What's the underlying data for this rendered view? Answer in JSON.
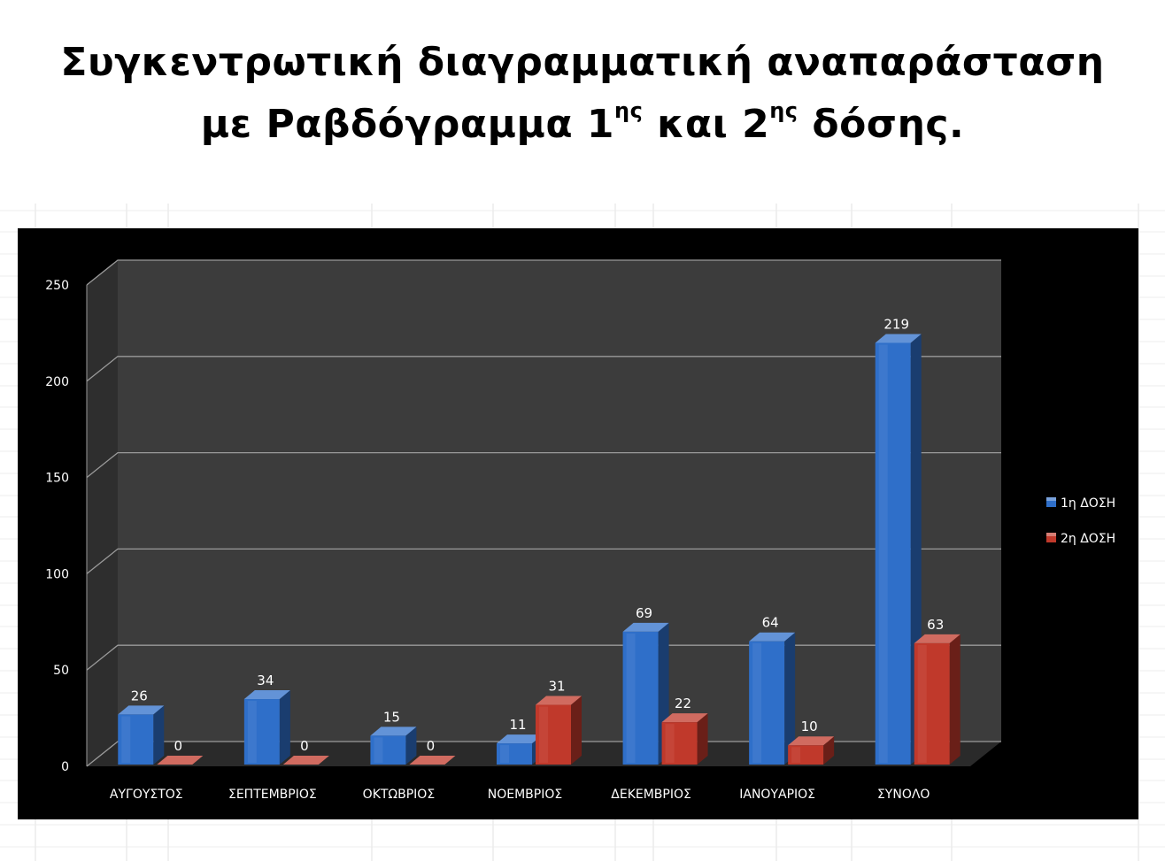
{
  "title": {
    "line1": "Συγκεντρωτική διαγραμματική αναπαράσταση",
    "line2_part1": "με Ραβδόγραμμα 1",
    "line2_sup1": "ης",
    "line2_part2": " και 2",
    "line2_sup2": "ης",
    "line2_part3": " δόσης."
  },
  "chart_data": {
    "type": "bar",
    "categories": [
      "ΑΥΓΟΥΣΤΟΣ",
      "ΣΕΠΤΕΜΒΡΙΟΣ",
      "ΟΚΤΩΒΡΙΟΣ",
      "ΝΟΕΜΒΡΙΟΣ",
      "ΔΕΚΕΜΒΡΙΟΣ",
      "ΙΑΝΟΥΑΡΙΟΣ",
      "ΣΥΝΟΛΟ"
    ],
    "series": [
      {
        "name": "1η ΔΟΣΗ",
        "values": [
          26,
          34,
          15,
          11,
          69,
          64,
          219
        ],
        "color": "#2f6fc9"
      },
      {
        "name": "2η ΔΟΣΗ",
        "values": [
          0,
          0,
          0,
          31,
          22,
          10,
          63
        ],
        "color": "#c0392b"
      }
    ],
    "yticks": [
      0,
      50,
      100,
      150,
      200,
      250
    ],
    "ylim": [
      0,
      250
    ],
    "legend": "right",
    "grid": true,
    "style": "3d-column",
    "background": "#000000",
    "wall_color": "#3c3c3c"
  }
}
